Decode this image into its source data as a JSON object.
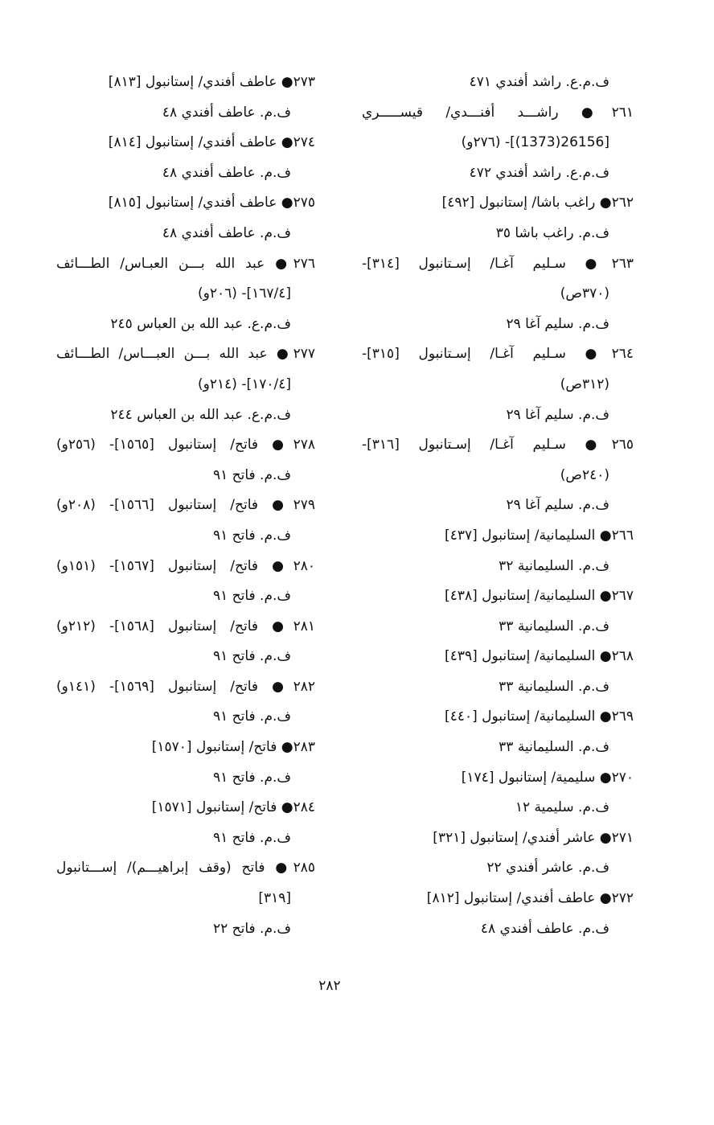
{
  "columns": {
    "right": [
      {
        "kind": "detail",
        "text": "ف.م.ع. راشد أفندي ٤٧١"
      },
      {
        "kind": "entry-full",
        "text": "٢٦١● راشـــد أفنـــدي/ قيســـــري"
      },
      {
        "kind": "cont",
        "text": "[26156(1373)]- (٢٧٦و)"
      },
      {
        "kind": "detail",
        "text": "ف.م.ع. راشد أفندي ٤٧٢"
      },
      {
        "kind": "entry",
        "text": "٢٦٢● راغب باشا/ إستانبول [٤٩٢]"
      },
      {
        "kind": "detail",
        "text": "ف.م. راغب باشا ٣٥"
      },
      {
        "kind": "entry-full",
        "text": "٢٦٣● سـليم آغـا/ إسـتانبول [٣١٤]-"
      },
      {
        "kind": "cont",
        "text": "(٣٧٠ص)"
      },
      {
        "kind": "detail",
        "text": "ف.م. سليم آغا ٢٩"
      },
      {
        "kind": "entry-full",
        "text": "٢٦٤● سـليم آغـا/ إسـتانبول [٣١٥]-"
      },
      {
        "kind": "cont",
        "text": "(٣١٢ص)"
      },
      {
        "kind": "detail",
        "text": "ف.م. سليم آغا ٢٩"
      },
      {
        "kind": "entry-full",
        "text": "٢٦٥● سـليم آغـا/ إسـتانبول [٣١٦]-"
      },
      {
        "kind": "cont",
        "text": "(٢٤٠ص)"
      },
      {
        "kind": "detail",
        "text": "ف.م. سليم آغا ٢٩"
      },
      {
        "kind": "entry",
        "text": "٢٦٦● السليمانية/ إستانبول [٤٣٧]"
      },
      {
        "kind": "detail",
        "text": "ف.م. السليمانية ٣٢"
      },
      {
        "kind": "entry",
        "text": "٢٦٧● السليمانية/ إستانبول [٤٣٨]"
      },
      {
        "kind": "detail",
        "text": "ف.م. السليمانية ٣٣"
      },
      {
        "kind": "entry",
        "text": "٢٦٨● السليمانية/ إستانبول [٤٣٩]"
      },
      {
        "kind": "detail",
        "text": "ف.م. السليمانية ٣٣"
      },
      {
        "kind": "entry",
        "text": "٢٦٩● السليمانية/ إستانبول [٤٤٠]"
      },
      {
        "kind": "detail",
        "text": "ف.م. السليمانية ٣٣"
      },
      {
        "kind": "entry",
        "text": "٢٧٠● سليمية/ إستانبول [١٧٤]"
      },
      {
        "kind": "detail",
        "text": "ف.م. سليمية ١٢"
      },
      {
        "kind": "entry",
        "text": "٢٧١● عاشر أفندي/ إستانبول [٣٢١]"
      },
      {
        "kind": "detail",
        "text": "ف.م. عاشر أفندي ٢٢"
      },
      {
        "kind": "entry",
        "text": "٢٧٢● عاطف أفندي/ إستانبول [٨١٢]"
      },
      {
        "kind": "detail",
        "text": "ف.م. عاطف أفندي ٤٨"
      }
    ],
    "left": [
      {
        "kind": "entry",
        "text": "٢٧٣● عاطف أفندي/ إستانبول [٨١٣]"
      },
      {
        "kind": "detail",
        "text": "ف.م. عاطف أفندي ٤٨"
      },
      {
        "kind": "entry",
        "text": "٢٧٤● عاطف أفندي/ إستانبول [٨١٤]"
      },
      {
        "kind": "detail",
        "text": "ف.م. عاطف أفندي ٤٨"
      },
      {
        "kind": "entry",
        "text": "٢٧٥● عاطف أفندي/ إستانبول [٨١٥]"
      },
      {
        "kind": "detail",
        "text": "ف.م. عاطف أفندي ٤٨"
      },
      {
        "kind": "entry-full",
        "text": "٢٧٦● عبد الله بـــن العبـاس/ الطـــائف"
      },
      {
        "kind": "cont",
        "text": "[١٦٧/٤]- (٢٠٦و)"
      },
      {
        "kind": "detail",
        "text": "ف.م.ع. عبد الله بن العباس ٢٤٥"
      },
      {
        "kind": "entry-full",
        "text": "٢٧٧● عبد الله بـــن العبـــاس/ الطـــائف"
      },
      {
        "kind": "cont",
        "text": "[١٧٠/٤]- (٢١٤و)"
      },
      {
        "kind": "detail",
        "text": "ف.م.ع. عبد الله بن العباس ٢٤٤"
      },
      {
        "kind": "entry-full",
        "text": "٢٧٨● فاتح/ إستانبول [١٥٦٥]- (٢٥٦و)"
      },
      {
        "kind": "detail",
        "text": "ف.م. فاتح ٩١"
      },
      {
        "kind": "entry-full",
        "text": "٢٧٩● فاتح/ إستانبول [١٥٦٦]- (٢٠٨و)"
      },
      {
        "kind": "detail",
        "text": "ف.م. فاتح ٩١"
      },
      {
        "kind": "entry-full",
        "text": "٢٨٠● فاتح/ إستانبول [١٥٦٧]- (١٥١و)"
      },
      {
        "kind": "detail",
        "text": "ف.م. فاتح ٩١"
      },
      {
        "kind": "entry-full",
        "text": "٢٨١● فاتح/ إستانبول [١٥٦٨]- (٢١٢و)"
      },
      {
        "kind": "detail",
        "text": "ف.م. فاتح ٩١"
      },
      {
        "kind": "entry-full",
        "text": "٢٨٢● فاتح/ إستانبول [١٥٦٩]- (١٤١و)"
      },
      {
        "kind": "detail",
        "text": "ف.م. فاتح ٩١"
      },
      {
        "kind": "entry",
        "text": "٢٨٣● فاتح/ إستانبول [١٥٧٠]"
      },
      {
        "kind": "detail",
        "text": "ف.م. فاتح ٩١"
      },
      {
        "kind": "entry",
        "text": "٢٨٤● فاتح/ إستانبول [١٥٧١]"
      },
      {
        "kind": "detail",
        "text": "ف.م. فاتح ٩١"
      },
      {
        "kind": "entry-full",
        "text": "٢٨٥● فاتح (وقف إبراهيـــم)/ إســـتانبول"
      },
      {
        "kind": "cont",
        "text": "[٣١٩]"
      },
      {
        "kind": "detail",
        "text": "ف.م. فاتح ٢٢"
      }
    ]
  },
  "page_number": "٢٨٢"
}
